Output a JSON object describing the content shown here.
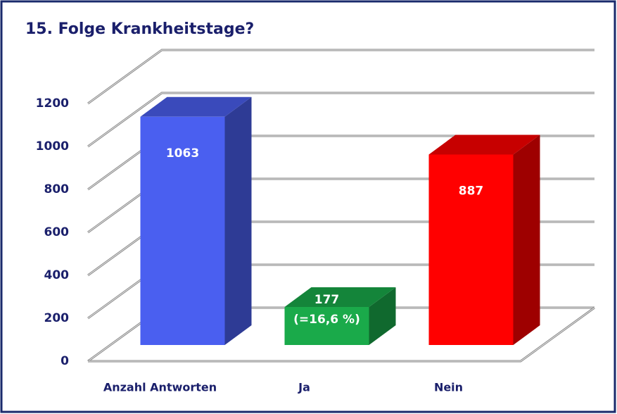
{
  "chart_data": {
    "type": "bar3d",
    "title": "15. Folge  Krankheitstage?",
    "categories": [
      "Anzahl Antworten",
      "Ja",
      "Nein"
    ],
    "values": [
      1063,
      177,
      887
    ],
    "colors": [
      "#4a5ff0",
      "#1aaa4a",
      "#ff0000"
    ],
    "annotations": [
      {
        "category": 1,
        "text": "(=16,6 %)"
      }
    ],
    "ylim": [
      0,
      1200
    ],
    "yticks": [
      0,
      200,
      400,
      600,
      800,
      1000,
      1200
    ],
    "grid": true
  }
}
